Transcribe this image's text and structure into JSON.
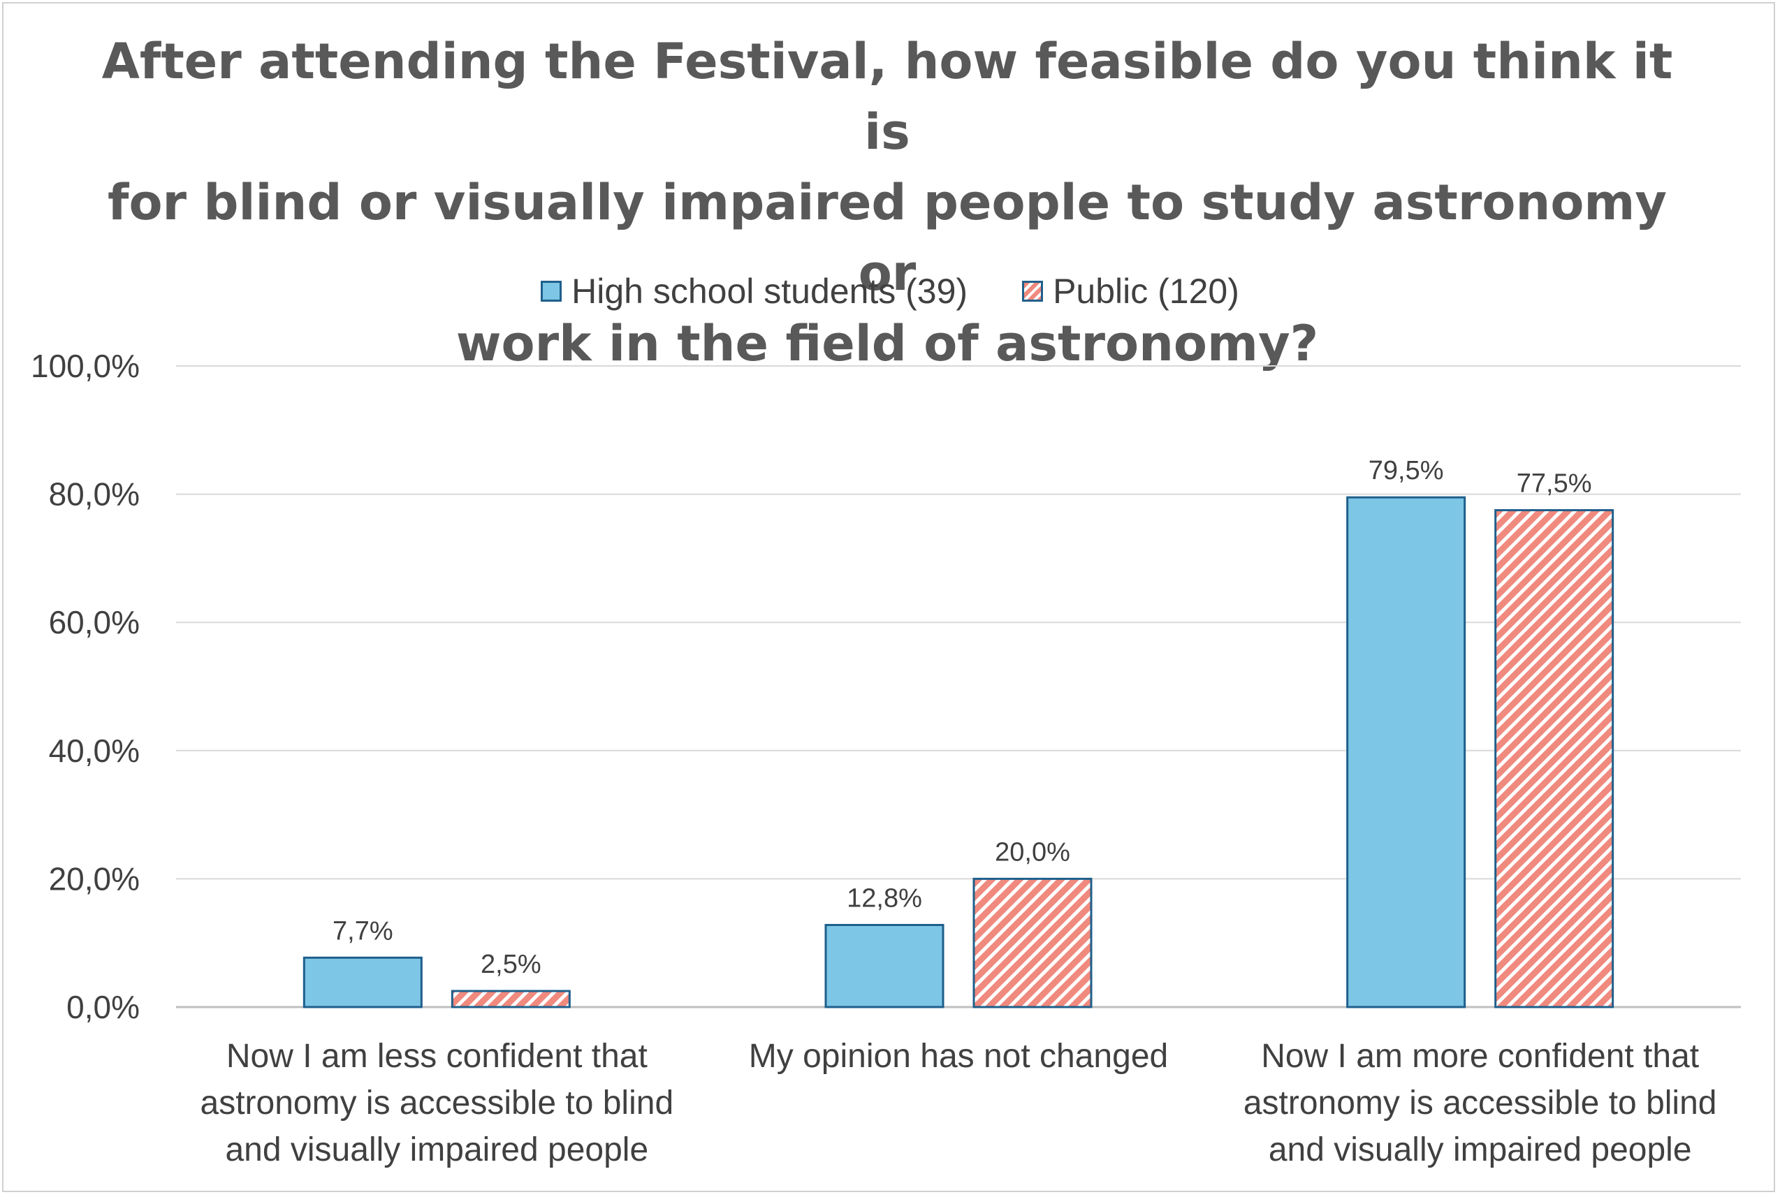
{
  "chart_data": {
    "type": "bar",
    "title_lines": [
      "After attending the Festival, how feasible do you think it is",
      "for blind or visually impaired people to study astronomy or",
      "work in the field of astronomy?"
    ],
    "categories": [
      [
        "Now I am less confident that",
        "astronomy is accessible to blind",
        "and visually impaired people"
      ],
      [
        "My opinion has not changed"
      ],
      [
        "Now I am more confident that",
        "astronomy is accessible to blind",
        "and visually impaired people"
      ]
    ],
    "series": [
      {
        "name": "High school students (39)",
        "values": [
          7.7,
          12.8,
          79.5
        ],
        "labels": [
          "7,7%",
          "12,8%",
          "79,5%"
        ],
        "color": "#7dc6e5",
        "border": "#1f5f8b"
      },
      {
        "name": "Public (120)",
        "values": [
          2.5,
          20.0,
          77.5
        ],
        "labels": [
          "2,5%",
          "20,0%",
          "77,5%"
        ],
        "color": "#f08a7e",
        "pattern": "diagonal-stripes",
        "border": "#1f5f8b"
      }
    ],
    "y_ticks": [
      "0,0%",
      "20,0%",
      "40,0%",
      "60,0%",
      "80,0%",
      "100,0%"
    ],
    "ylim": [
      0,
      100
    ],
    "grid": true,
    "legend_position": "top"
  }
}
